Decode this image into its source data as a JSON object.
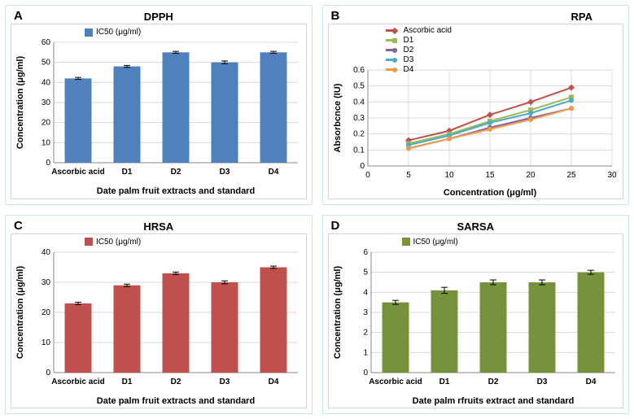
{
  "panelA": {
    "letter": "A",
    "title": "DPPH",
    "type": "bar",
    "legend_label": "IC50 (μg/ml)",
    "legend_swatch": "#4f81bd",
    "categories": [
      "Ascorbic acid",
      "D1",
      "D2",
      "D3",
      "D4"
    ],
    "values": [
      42,
      48,
      55,
      50,
      55
    ],
    "errors": [
      0.5,
      0.5,
      0.5,
      0.7,
      0.5
    ],
    "bar_color": "#4f81bd",
    "ylim": [
      0,
      60
    ],
    "ytick_step": 10,
    "xlabel": "Date palm fruit extracts and standard",
    "ylabel": "Concentration (μg/ml)",
    "label_fontsize": 10,
    "grid_color": "#d9d9d9"
  },
  "panelB": {
    "letter": "B",
    "title": "RPA",
    "type": "line",
    "series": [
      {
        "name": "Ascorbic acid",
        "color": "#c0504d",
        "marker": "diamond",
        "values": [
          0.16,
          0.22,
          0.32,
          0.4,
          0.49
        ]
      },
      {
        "name": "D1",
        "color": "#9bbb59",
        "marker": "square",
        "values": [
          0.14,
          0.2,
          0.28,
          0.35,
          0.43
        ]
      },
      {
        "name": "D2",
        "color": "#8064a2",
        "marker": "circle",
        "values": [
          0.11,
          0.17,
          0.24,
          0.3,
          0.36
        ]
      },
      {
        "name": "D3",
        "color": "#4bacc6",
        "marker": "circle",
        "values": [
          0.13,
          0.19,
          0.27,
          0.33,
          0.41
        ]
      },
      {
        "name": "D4",
        "color": "#f79646",
        "marker": "circle",
        "values": [
          0.11,
          0.17,
          0.23,
          0.29,
          0.36
        ]
      }
    ],
    "x_values": [
      5,
      10,
      15,
      20,
      25
    ],
    "xlim": [
      0,
      30
    ],
    "ylim": [
      0,
      0.6
    ],
    "xtick_step": 5,
    "ytick_step": 0.1,
    "xlabel": "Concentration (μg/ml)",
    "ylabel": "Absorbcnce (IU)",
    "grid_color": "#d9d9d9"
  },
  "panelC": {
    "letter": "C",
    "title": "HRSA",
    "type": "bar",
    "legend_label": "IC50 (μg/ml)",
    "legend_swatch": "#c0504d",
    "categories": [
      "Ascorbic acid",
      "D1",
      "D2",
      "D3",
      "D4"
    ],
    "values": [
      23,
      29,
      33,
      30,
      35
    ],
    "errors": [
      0.4,
      0.4,
      0.4,
      0.5,
      0.4
    ],
    "bar_color": "#c0504d",
    "ylim": [
      0,
      40
    ],
    "ytick_step": 10,
    "xlabel": "Date palm fruit extracts and standard",
    "ylabel": "Concentration (μg/ml)",
    "grid_color": "#d9d9d9"
  },
  "panelD": {
    "letter": "D",
    "title": "SARSA",
    "type": "bar",
    "legend_label": "IC50 (μg/ml)",
    "legend_swatch": "#76933c",
    "categories": [
      "Ascorbic acid",
      "D1",
      "D2",
      "D3",
      "D4"
    ],
    "values": [
      3.5,
      4.1,
      4.5,
      4.5,
      5.0
    ],
    "errors": [
      0.1,
      0.15,
      0.12,
      0.12,
      0.1
    ],
    "bar_color": "#76933c",
    "ylim": [
      0,
      6
    ],
    "ytick_step": 1,
    "xlabel": "Date palm rfruits extract and standard",
    "ylabel": "Concentration (μg/ml)",
    "grid_color": "#d9d9d9"
  }
}
